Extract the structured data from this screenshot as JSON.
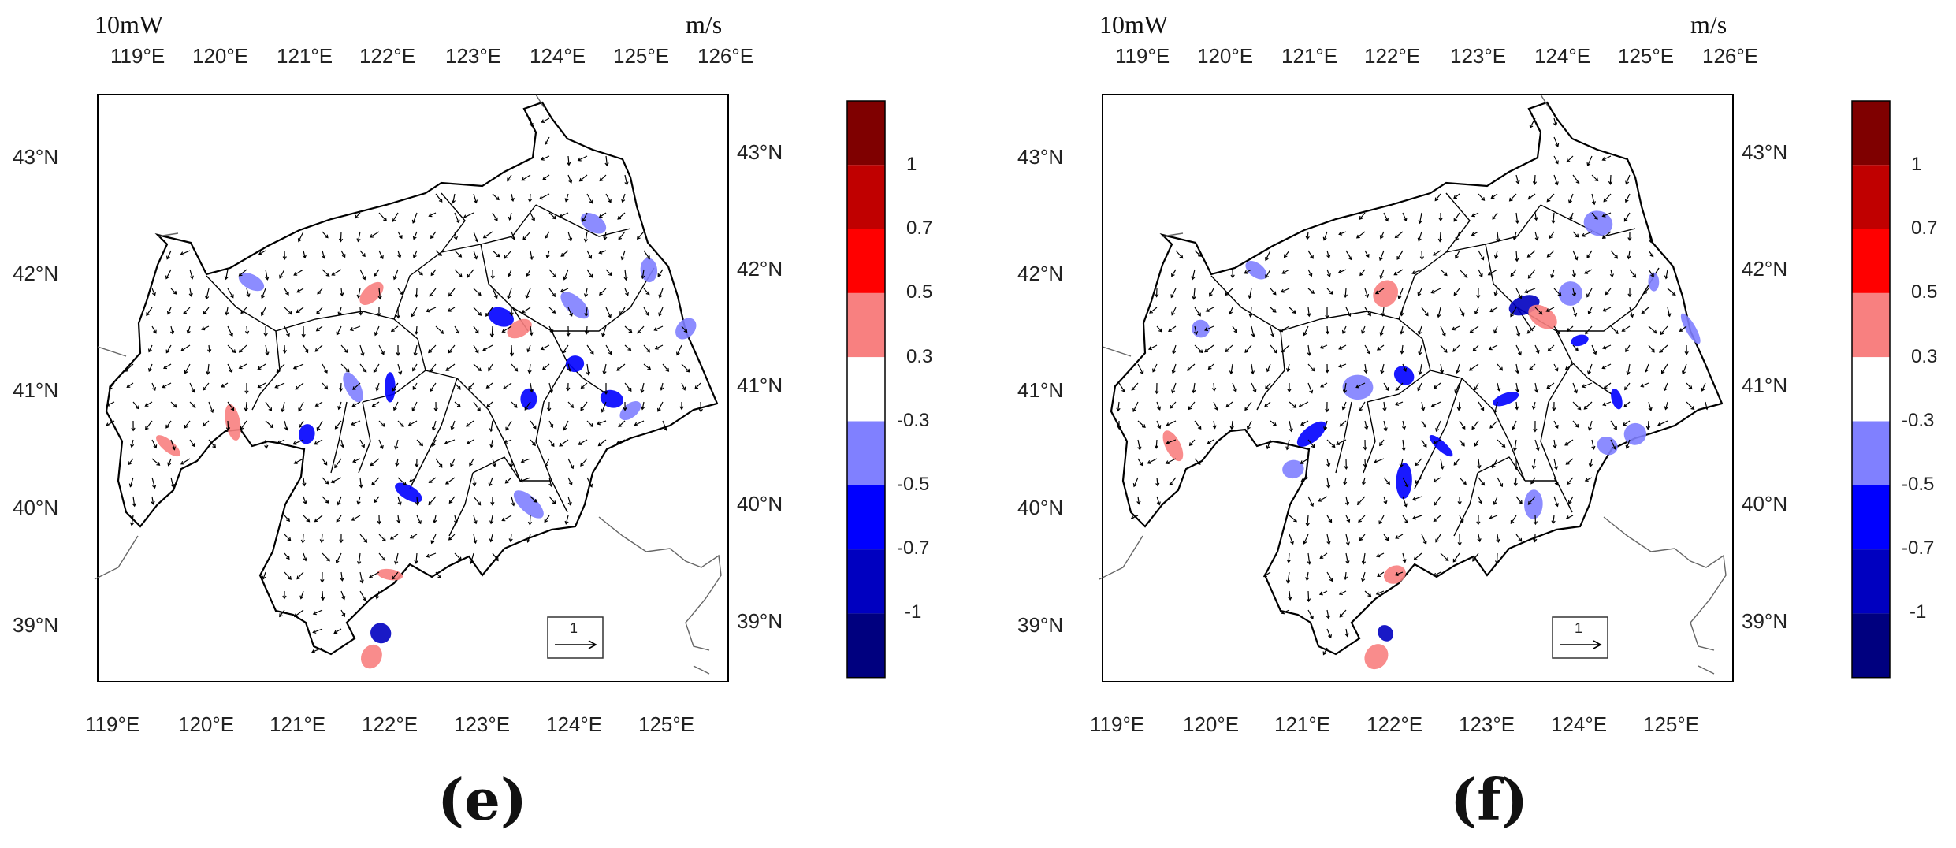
{
  "panels": [
    {
      "id": "e",
      "caption": "(e)",
      "header_left": "10mW",
      "header_right": "m/s",
      "lon_top": [
        "119°E",
        "120°E",
        "121°E",
        "122°E",
        "123°E",
        "124°E",
        "125°E",
        "126°E"
      ],
      "lon_bottom": [
        "119°E",
        "120°E",
        "121°E",
        "122°E",
        "123°E",
        "124°E",
        "125°E"
      ],
      "lat": [
        "43°N",
        "42°N",
        "41°N",
        "40°N",
        "39°N"
      ],
      "ref_vector_label": "1",
      "colorbar_labels": [
        "1",
        "0.7",
        "0.5",
        "0.3",
        "-0.3",
        "-0.5",
        "-0.7",
        "-1"
      ]
    },
    {
      "id": "f",
      "caption": "(f)",
      "header_left": "10mW",
      "header_right": "m/s",
      "lon_top": [
        "119°E",
        "120°E",
        "121°E",
        "122°E",
        "123°E",
        "124°E",
        "125°E",
        "126°E"
      ],
      "lon_bottom": [
        "119°E",
        "120°E",
        "121°E",
        "122°E",
        "123°E",
        "124°E",
        "125°E"
      ],
      "lat": [
        "43°N",
        "42°N",
        "41°N",
        "40°N",
        "39°N"
      ],
      "ref_vector_label": "1",
      "colorbar_labels": [
        "1",
        "0.7",
        "0.5",
        "0.3",
        "-0.3",
        "-0.5",
        "-0.7",
        "-1"
      ]
    }
  ],
  "colorbar_colors": [
    "#7f0000",
    "#c00000",
    "#ff0000",
    "#f88080",
    "#ffffff",
    "#8080ff",
    "#0000ff",
    "#0000c0",
    "#00007f"
  ],
  "shading": {
    "e": [
      {
        "lon": 123.2,
        "lat": 41.7,
        "level": -0.7
      },
      {
        "lon": 123.5,
        "lat": 41.0,
        "level": -0.7
      },
      {
        "lon": 124.4,
        "lat": 41.0,
        "level": -0.7
      },
      {
        "lon": 124.6,
        "lat": 40.9,
        "level": -0.5
      },
      {
        "lon": 122.0,
        "lat": 41.1,
        "level": -0.7
      },
      {
        "lon": 121.9,
        "lat": 39.0,
        "level": -1
      },
      {
        "lon": 124.2,
        "lat": 42.5,
        "level": -0.5
      },
      {
        "lon": 124.8,
        "lat": 42.1,
        "level": -0.5
      },
      {
        "lon": 124.0,
        "lat": 41.3,
        "level": -0.7
      },
      {
        "lon": 121.1,
        "lat": 40.7,
        "level": -0.7
      },
      {
        "lon": 122.2,
        "lat": 40.2,
        "level": -0.7
      },
      {
        "lon": 123.5,
        "lat": 40.1,
        "level": -0.5
      },
      {
        "lon": 120.5,
        "lat": 42.0,
        "level": -0.5
      },
      {
        "lon": 121.6,
        "lat": 41.1,
        "level": -0.5
      },
      {
        "lon": 125.2,
        "lat": 41.6,
        "level": -0.5
      },
      {
        "lon": 124.0,
        "lat": 41.8,
        "level": -0.5
      },
      {
        "lon": 121.8,
        "lat": 41.9,
        "level": 0.3
      },
      {
        "lon": 119.6,
        "lat": 40.6,
        "level": 0.3
      },
      {
        "lon": 122.0,
        "lat": 39.5,
        "level": 0.3
      },
      {
        "lon": 121.8,
        "lat": 38.8,
        "level": 0.3
      },
      {
        "lon": 120.3,
        "lat": 40.8,
        "level": 0.3
      },
      {
        "lon": 123.4,
        "lat": 41.6,
        "level": 0.3
      }
    ],
    "f": [
      {
        "lon": 123.4,
        "lat": 41.8,
        "level": -1
      },
      {
        "lon": 123.2,
        "lat": 41.0,
        "level": -0.7
      },
      {
        "lon": 124.4,
        "lat": 41.0,
        "level": -0.7
      },
      {
        "lon": 124.6,
        "lat": 40.7,
        "level": -0.5
      },
      {
        "lon": 122.1,
        "lat": 41.2,
        "level": -0.7
      },
      {
        "lon": 121.9,
        "lat": 39.0,
        "level": -1
      },
      {
        "lon": 124.2,
        "lat": 42.5,
        "level": -0.5
      },
      {
        "lon": 124.8,
        "lat": 42.0,
        "level": -0.5
      },
      {
        "lon": 124.0,
        "lat": 41.5,
        "level": -0.7
      },
      {
        "lon": 121.1,
        "lat": 40.7,
        "level": -0.7
      },
      {
        "lon": 122.1,
        "lat": 40.3,
        "level": -0.7
      },
      {
        "lon": 123.5,
        "lat": 40.1,
        "level": -0.5
      },
      {
        "lon": 120.5,
        "lat": 42.1,
        "level": -0.5
      },
      {
        "lon": 121.6,
        "lat": 41.1,
        "level": -0.5
      },
      {
        "lon": 125.2,
        "lat": 41.6,
        "level": -0.5
      },
      {
        "lon": 123.9,
        "lat": 41.9,
        "level": -0.5
      },
      {
        "lon": 122.5,
        "lat": 40.6,
        "level": -0.7
      },
      {
        "lon": 124.3,
        "lat": 40.6,
        "level": -0.5
      },
      {
        "lon": 119.9,
        "lat": 41.6,
        "level": -0.5
      },
      {
        "lon": 120.9,
        "lat": 40.4,
        "level": -0.5
      },
      {
        "lon": 121.9,
        "lat": 41.9,
        "level": 0.3
      },
      {
        "lon": 119.6,
        "lat": 40.6,
        "level": 0.3
      },
      {
        "lon": 122.0,
        "lat": 39.5,
        "level": 0.3
      },
      {
        "lon": 121.8,
        "lat": 38.8,
        "level": 0.3
      },
      {
        "lon": 123.6,
        "lat": 41.7,
        "level": 0.3
      }
    ]
  }
}
